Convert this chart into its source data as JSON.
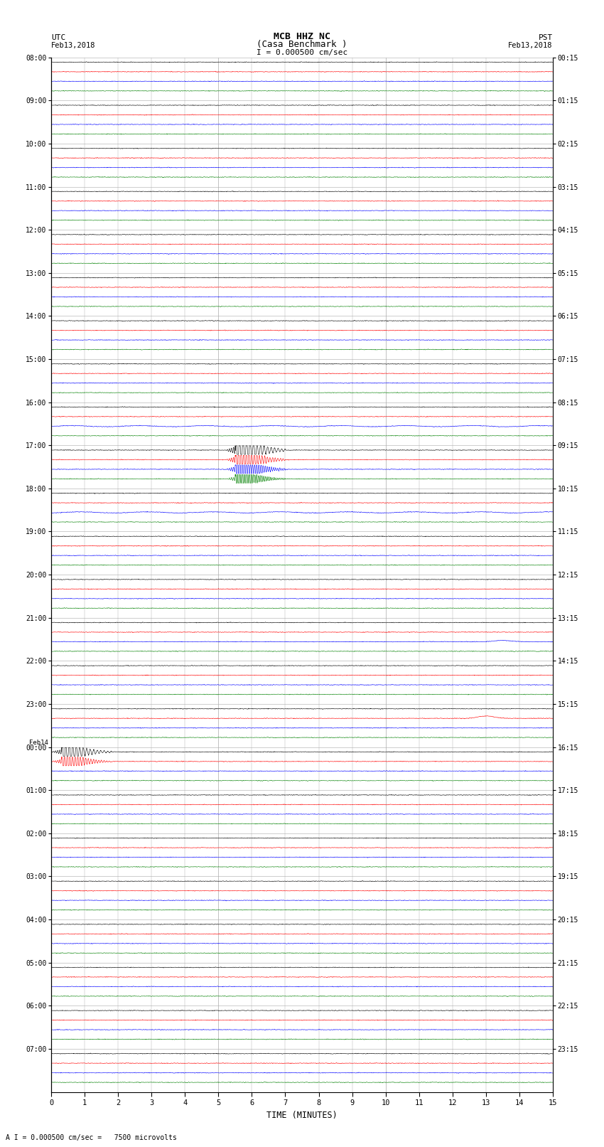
{
  "title_line1": "MCB HHZ NC",
  "title_line2": "(Casa Benchmark )",
  "scale_label": "I = 0.000500 cm/sec",
  "bottom_label": "TIME (MINUTES)",
  "bottom_note": "A I = 0.000500 cm/sec =   7500 microvolts",
  "utc_label1": "UTC",
  "utc_label2": "Feb13,2018",
  "pst_label1": "PST",
  "pst_label2": "Feb13,2018",
  "left_times": [
    "08:00",
    "09:00",
    "10:00",
    "11:00",
    "12:00",
    "13:00",
    "14:00",
    "15:00",
    "16:00",
    "17:00",
    "18:00",
    "19:00",
    "20:00",
    "21:00",
    "22:00",
    "23:00",
    "00:00",
    "01:00",
    "02:00",
    "03:00",
    "04:00",
    "05:00",
    "06:00",
    "07:00"
  ],
  "feb14_row": 16,
  "right_times": [
    "00:15",
    "01:15",
    "02:15",
    "03:15",
    "04:15",
    "05:15",
    "06:15",
    "07:15",
    "08:15",
    "09:15",
    "10:15",
    "11:15",
    "12:15",
    "13:15",
    "14:15",
    "15:15",
    "16:15",
    "17:15",
    "18:15",
    "19:15",
    "20:15",
    "21:15",
    "22:15",
    "23:15"
  ],
  "n_rows": 24,
  "n_traces_per_row": 4,
  "colors": [
    "black",
    "red",
    "blue",
    "green"
  ],
  "noise_amp": 0.006,
  "background": "white",
  "grid_color": "#aaaaaa",
  "events": [
    {
      "row": 9,
      "trace": 0,
      "minute": 5.5,
      "amp": 0.55,
      "sharp": true
    },
    {
      "row": 9,
      "trace": 1,
      "minute": 5.5,
      "amp": 0.45,
      "sharp": true
    },
    {
      "row": 9,
      "trace": 2,
      "minute": 5.5,
      "amp": 0.4,
      "sharp": true
    },
    {
      "row": 9,
      "trace": 3,
      "minute": 5.5,
      "amp": 0.3,
      "sharp": true
    },
    {
      "row": 13,
      "trace": 2,
      "minute": 13.5,
      "amp": 0.1,
      "sharp": false
    },
    {
      "row": 15,
      "trace": 1,
      "minute": 13.0,
      "amp": 0.18,
      "sharp": false
    },
    {
      "row": 16,
      "trace": 0,
      "minute": 0.3,
      "amp": 0.35,
      "sharp": true
    },
    {
      "row": 16,
      "trace": 1,
      "minute": 0.3,
      "amp": 0.3,
      "sharp": true
    }
  ],
  "fig_width": 8.5,
  "fig_height": 16.13
}
